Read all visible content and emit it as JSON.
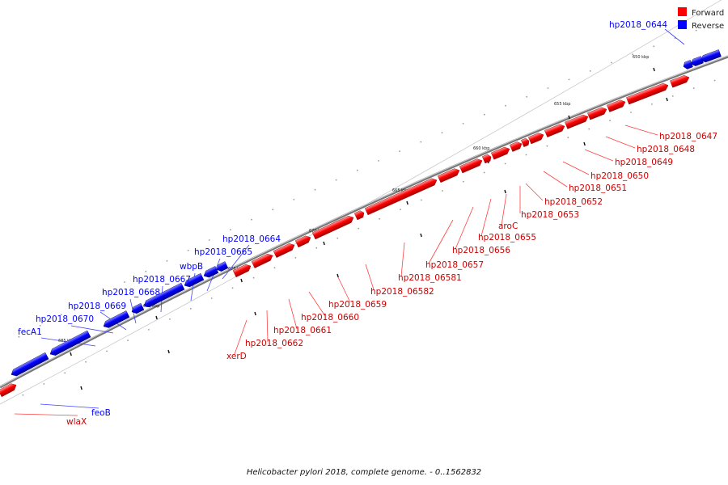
{
  "legend": {
    "forward_label": "Forward",
    "reverse_label": "Reverse",
    "forward_color": "#ff0000",
    "reverse_color": "#0000ff"
  },
  "caption": "Helicobacter pylori 2018, complete genome. - 0..1562832",
  "scale_labels": [
    "650 kbp",
    "655 kbp",
    "660 kbp",
    "665 kbp",
    "670 kbp",
    "675 kbp",
    "680 kbp",
    "685 kbp"
  ],
  "genes": [
    {
      "name": "hp2018_0644",
      "strand": "reverse"
    },
    {
      "name": "hp2018_0647",
      "strand": "forward"
    },
    {
      "name": "hp2018_0648",
      "strand": "forward"
    },
    {
      "name": "hp2018_0649",
      "strand": "forward"
    },
    {
      "name": "hp2018_0650",
      "strand": "forward"
    },
    {
      "name": "hp2018_0651",
      "strand": "forward"
    },
    {
      "name": "hp2018_0652",
      "strand": "forward"
    },
    {
      "name": "hp2018_0653",
      "strand": "forward"
    },
    {
      "name": "aroC",
      "strand": "forward"
    },
    {
      "name": "hp2018_0655",
      "strand": "forward"
    },
    {
      "name": "hp2018_0656",
      "strand": "forward"
    },
    {
      "name": "hp2018_0657",
      "strand": "forward"
    },
    {
      "name": "hp2018_06581",
      "strand": "forward"
    },
    {
      "name": "hp2018_06582",
      "strand": "forward"
    },
    {
      "name": "hp2018_0659",
      "strand": "forward"
    },
    {
      "name": "hp2018_0660",
      "strand": "forward"
    },
    {
      "name": "hp2018_0661",
      "strand": "forward"
    },
    {
      "name": "hp2018_0662",
      "strand": "forward"
    },
    {
      "name": "xerD",
      "strand": "forward"
    },
    {
      "name": "hp2018_0664",
      "strand": "reverse"
    },
    {
      "name": "hp2018_0665",
      "strand": "reverse"
    },
    {
      "name": "wbpB",
      "strand": "reverse"
    },
    {
      "name": "hp2018_0667",
      "strand": "reverse"
    },
    {
      "name": "hp2018_0668",
      "strand": "reverse"
    },
    {
      "name": "hp2018_0669",
      "strand": "reverse"
    },
    {
      "name": "hp2018_0670",
      "strand": "reverse"
    },
    {
      "name": "fecA1",
      "strand": "reverse"
    },
    {
      "name": "feoB",
      "strand": "reverse"
    },
    {
      "name": "wlaX",
      "strand": "forward"
    }
  ]
}
